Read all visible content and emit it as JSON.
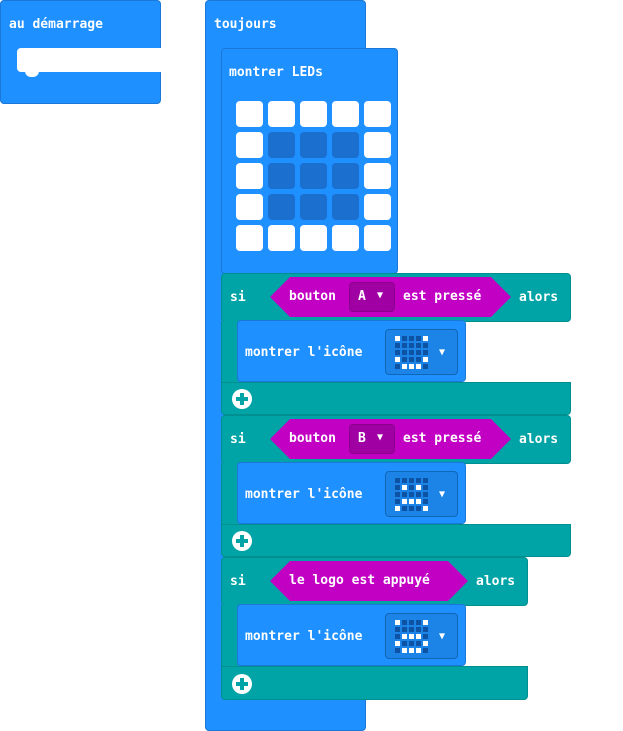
{
  "on_start": {
    "label": "au démarrage"
  },
  "forever": {
    "label": "toujours",
    "show_leds": {
      "label": "montrer LEDs",
      "pattern": [
        [
          0,
          0,
          0,
          0,
          0
        ],
        [
          0,
          1,
          1,
          1,
          0
        ],
        [
          0,
          1,
          1,
          1,
          0
        ],
        [
          0,
          1,
          1,
          1,
          0
        ],
        [
          0,
          0,
          0,
          0,
          0
        ]
      ]
    },
    "if_blocks": [
      {
        "if_label": "si",
        "then_label": "alors",
        "condition": {
          "prefix": "bouton",
          "dropdown": "A",
          "suffix": "est pressé"
        },
        "action_label": "montrer l'icône",
        "icon_pattern": [
          [
            1,
            0,
            0,
            0,
            1
          ],
          [
            0,
            0,
            0,
            0,
            0
          ],
          [
            0,
            0,
            0,
            0,
            0
          ],
          [
            1,
            0,
            0,
            0,
            1
          ],
          [
            0,
            1,
            1,
            1,
            0
          ]
        ],
        "icon_name": "smiley-icon"
      },
      {
        "if_label": "si",
        "then_label": "alors",
        "condition": {
          "prefix": "bouton",
          "dropdown": "B",
          "suffix": "est pressé"
        },
        "action_label": "montrer l'icône",
        "icon_pattern": [
          [
            0,
            0,
            0,
            0,
            0
          ],
          [
            0,
            1,
            0,
            1,
            0
          ],
          [
            0,
            0,
            0,
            0,
            0
          ],
          [
            0,
            1,
            1,
            1,
            0
          ],
          [
            1,
            0,
            0,
            0,
            1
          ]
        ],
        "icon_name": "sad-icon"
      },
      {
        "if_label": "si",
        "then_label": "alors",
        "condition": {
          "text": "le logo est appuyé"
        },
        "action_label": "montrer l'icône",
        "icon_pattern": [
          [
            1,
            0,
            0,
            0,
            1
          ],
          [
            0,
            0,
            0,
            0,
            0
          ],
          [
            0,
            1,
            1,
            1,
            0
          ],
          [
            1,
            0,
            0,
            0,
            1
          ],
          [
            0,
            1,
            1,
            1,
            0
          ]
        ],
        "icon_name": "surprised-icon"
      }
    ]
  },
  "colors": {
    "basic_blue": "#1e90ff",
    "logic_teal": "#00a4a6",
    "input_magenta": "#c200c4",
    "led_on": "#1b6fce",
    "led_off": "#ffffff"
  }
}
